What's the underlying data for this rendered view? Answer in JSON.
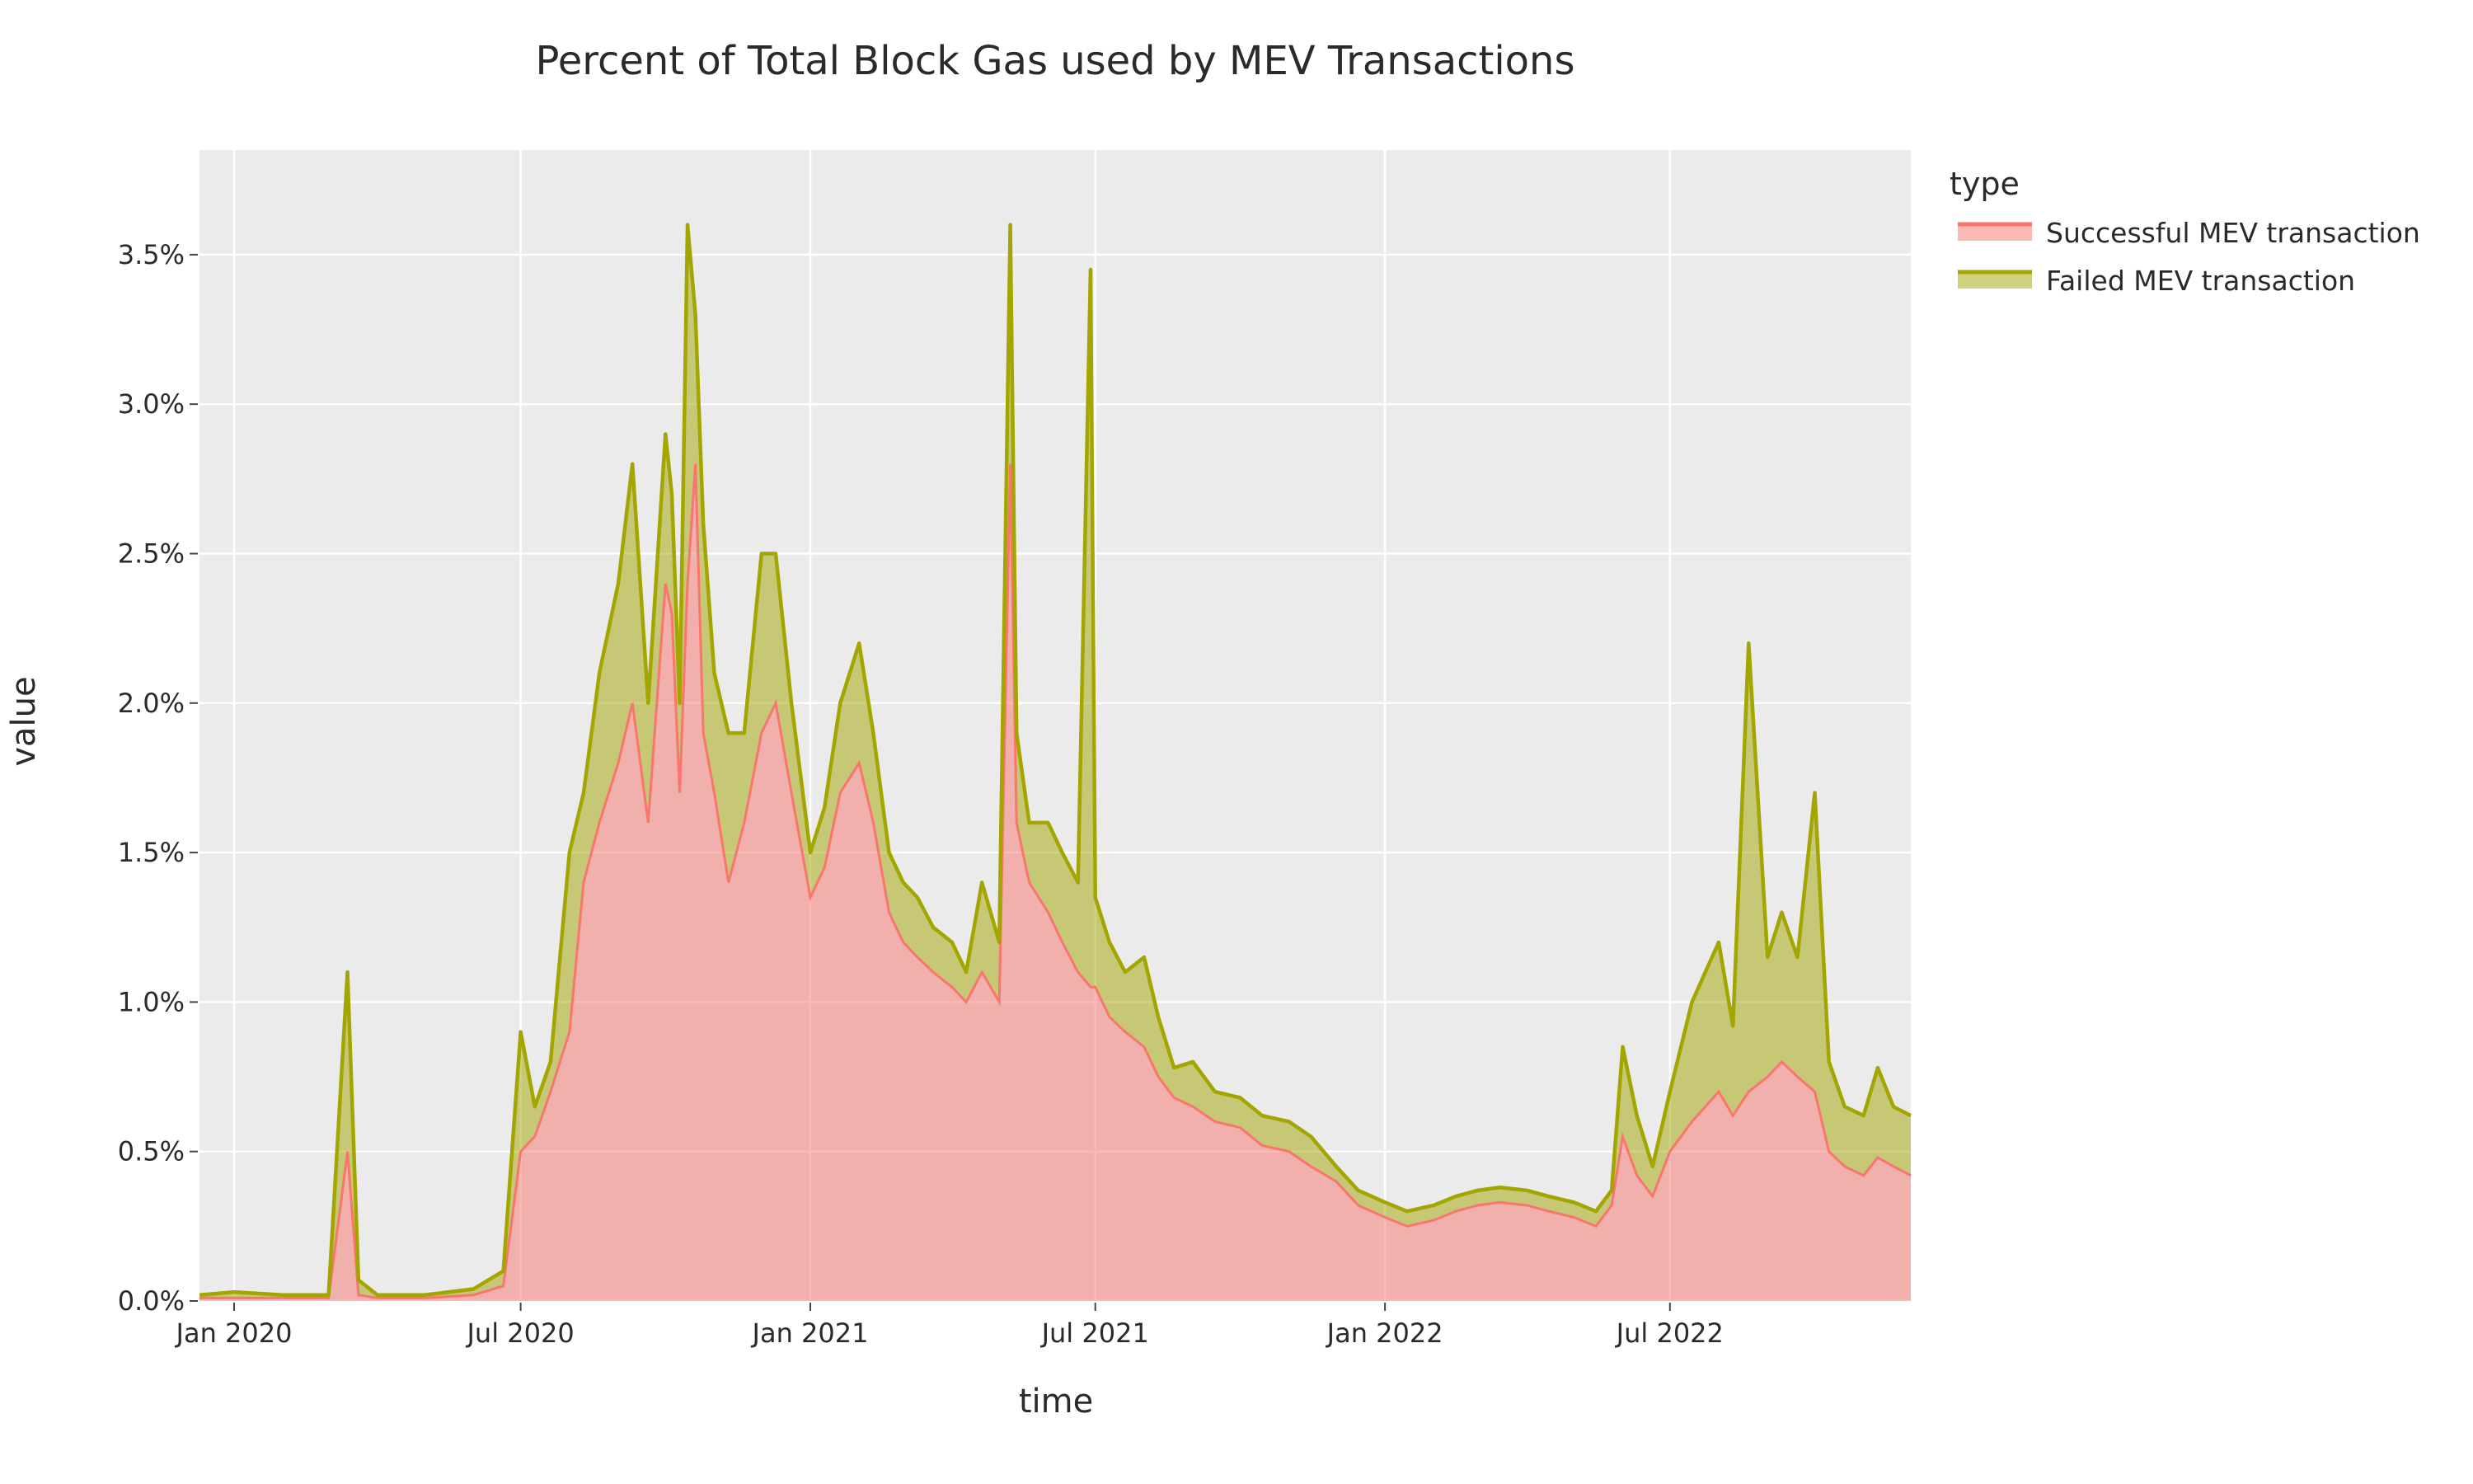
{
  "chart_data": {
    "type": "area",
    "title": "Percent of Total Block Gas used by MEV Transactions",
    "xlabel": "time",
    "ylabel": "value",
    "x_ticks": [
      "Jan 2020",
      "Jul 2020",
      "Jan 2021",
      "Jul 2021",
      "Jan 2022",
      "Jul 2022"
    ],
    "x_tick_dates": [
      "2020-01-01",
      "2020-07-01",
      "2021-01-01",
      "2021-07-01",
      "2022-01-01",
      "2022-07-01"
    ],
    "y_ticks": [
      "0.0%",
      "0.5%",
      "1.0%",
      "1.5%",
      "2.0%",
      "2.5%",
      "3.0%",
      "3.5%"
    ],
    "y_tick_values": [
      0,
      0.5,
      1.0,
      1.5,
      2.0,
      2.5,
      3.0,
      3.5
    ],
    "xlim": [
      "2019-12-10",
      "2022-12-01"
    ],
    "ylim": [
      0,
      3.85
    ],
    "y_unit": "%",
    "grid": true,
    "stacked": true,
    "legend": {
      "title": "type",
      "position": "right"
    },
    "background_color": "#ebebeb",
    "series": [
      {
        "name": "Successful MEV transaction",
        "color": "#f8766d",
        "x": [
          "2019-12-10",
          "2020-01-01",
          "2020-02-01",
          "2020-03-01",
          "2020-03-13",
          "2020-03-20",
          "2020-04-01",
          "2020-05-01",
          "2020-06-01",
          "2020-06-20",
          "2020-07-01",
          "2020-07-10",
          "2020-07-20",
          "2020-08-01",
          "2020-08-10",
          "2020-08-20",
          "2020-09-01",
          "2020-09-10",
          "2020-09-20",
          "2020-10-01",
          "2020-10-05",
          "2020-10-10",
          "2020-10-15",
          "2020-10-20",
          "2020-10-25",
          "2020-11-01",
          "2020-11-10",
          "2020-11-20",
          "2020-12-01",
          "2020-12-10",
          "2020-12-20",
          "2021-01-01",
          "2021-01-10",
          "2021-01-20",
          "2021-02-01",
          "2021-02-10",
          "2021-02-20",
          "2021-03-01",
          "2021-03-10",
          "2021-03-20",
          "2021-04-01",
          "2021-04-10",
          "2021-04-20",
          "2021-05-01",
          "2021-05-08",
          "2021-05-12",
          "2021-05-20",
          "2021-06-01",
          "2021-06-10",
          "2021-06-20",
          "2021-06-28",
          "2021-07-01",
          "2021-07-10",
          "2021-07-20",
          "2021-08-01",
          "2021-08-10",
          "2021-08-20",
          "2021-09-01",
          "2021-09-15",
          "2021-10-01",
          "2021-10-15",
          "2021-11-01",
          "2021-11-15",
          "2021-12-01",
          "2021-12-15",
          "2022-01-01",
          "2022-01-15",
          "2022-02-01",
          "2022-02-15",
          "2022-03-01",
          "2022-03-15",
          "2022-04-01",
          "2022-04-15",
          "2022-05-01",
          "2022-05-15",
          "2022-05-25",
          "2022-06-01",
          "2022-06-10",
          "2022-06-20",
          "2022-07-01",
          "2022-07-15",
          "2022-08-01",
          "2022-08-10",
          "2022-08-20",
          "2022-09-01",
          "2022-09-10",
          "2022-09-20",
          "2022-10-01",
          "2022-10-10",
          "2022-10-20",
          "2022-11-01",
          "2022-11-10",
          "2022-11-20",
          "2022-12-01"
        ],
        "values": [
          0.01,
          0.01,
          0.01,
          0.01,
          0.5,
          0.02,
          0.01,
          0.01,
          0.02,
          0.05,
          0.5,
          0.55,
          0.7,
          0.9,
          1.4,
          1.6,
          1.8,
          2.0,
          1.6,
          2.4,
          2.3,
          1.7,
          2.4,
          2.8,
          1.9,
          1.7,
          1.4,
          1.6,
          1.9,
          2.0,
          1.7,
          1.35,
          1.45,
          1.7,
          1.8,
          1.6,
          1.3,
          1.2,
          1.15,
          1.1,
          1.05,
          1.0,
          1.1,
          1.0,
          2.8,
          1.6,
          1.4,
          1.3,
          1.2,
          1.1,
          1.05,
          1.05,
          0.95,
          0.9,
          0.85,
          0.75,
          0.68,
          0.65,
          0.6,
          0.58,
          0.52,
          0.5,
          0.45,
          0.4,
          0.32,
          0.28,
          0.25,
          0.27,
          0.3,
          0.32,
          0.33,
          0.32,
          0.3,
          0.28,
          0.25,
          0.32,
          0.55,
          0.42,
          0.35,
          0.5,
          0.6,
          0.7,
          0.62,
          0.7,
          0.75,
          0.8,
          0.75,
          0.7,
          0.5,
          0.45,
          0.42,
          0.48,
          0.45,
          0.42
        ]
      },
      {
        "name": "Failed MEV transaction",
        "color": "#a3a500",
        "x": [
          "2019-12-10",
          "2020-01-01",
          "2020-02-01",
          "2020-03-01",
          "2020-03-13",
          "2020-03-20",
          "2020-04-01",
          "2020-05-01",
          "2020-06-01",
          "2020-06-20",
          "2020-07-01",
          "2020-07-10",
          "2020-07-20",
          "2020-08-01",
          "2020-08-10",
          "2020-08-20",
          "2020-09-01",
          "2020-09-10",
          "2020-09-20",
          "2020-10-01",
          "2020-10-05",
          "2020-10-10",
          "2020-10-15",
          "2020-10-20",
          "2020-10-25",
          "2020-11-01",
          "2020-11-10",
          "2020-11-20",
          "2020-12-01",
          "2020-12-10",
          "2020-12-20",
          "2021-01-01",
          "2021-01-10",
          "2021-01-20",
          "2021-02-01",
          "2021-02-10",
          "2021-02-20",
          "2021-03-01",
          "2021-03-10",
          "2021-03-20",
          "2021-04-01",
          "2021-04-10",
          "2021-04-20",
          "2021-05-01",
          "2021-05-08",
          "2021-05-12",
          "2021-05-20",
          "2021-06-01",
          "2021-06-10",
          "2021-06-20",
          "2021-06-28",
          "2021-07-01",
          "2021-07-10",
          "2021-07-20",
          "2021-08-01",
          "2021-08-10",
          "2021-08-20",
          "2021-09-01",
          "2021-09-15",
          "2021-10-01",
          "2021-10-15",
          "2021-11-01",
          "2021-11-15",
          "2021-12-01",
          "2021-12-15",
          "2022-01-01",
          "2022-01-15",
          "2022-02-01",
          "2022-02-15",
          "2022-03-01",
          "2022-03-15",
          "2022-04-01",
          "2022-04-15",
          "2022-05-01",
          "2022-05-15",
          "2022-05-25",
          "2022-06-01",
          "2022-06-10",
          "2022-06-20",
          "2022-07-01",
          "2022-07-15",
          "2022-08-01",
          "2022-08-10",
          "2022-08-20",
          "2022-09-01",
          "2022-09-10",
          "2022-09-20",
          "2022-10-01",
          "2022-10-10",
          "2022-10-20",
          "2022-11-01",
          "2022-11-10",
          "2022-11-20",
          "2022-12-01"
        ],
        "values": [
          0.01,
          0.02,
          0.01,
          0.01,
          0.6,
          0.05,
          0.01,
          0.01,
          0.02,
          0.05,
          0.4,
          0.1,
          0.1,
          0.6,
          0.3,
          0.5,
          0.6,
          0.8,
          0.4,
          0.5,
          0.4,
          0.3,
          1.2,
          0.5,
          0.7,
          0.4,
          0.5,
          0.3,
          0.6,
          0.5,
          0.3,
          0.15,
          0.2,
          0.3,
          0.4,
          0.3,
          0.2,
          0.2,
          0.2,
          0.15,
          0.15,
          0.1,
          0.3,
          0.2,
          0.8,
          0.3,
          0.2,
          0.3,
          0.3,
          0.3,
          2.4,
          0.3,
          0.25,
          0.2,
          0.3,
          0.2,
          0.1,
          0.15,
          0.1,
          0.1,
          0.1,
          0.1,
          0.1,
          0.05,
          0.05,
          0.05,
          0.05,
          0.05,
          0.05,
          0.05,
          0.05,
          0.05,
          0.05,
          0.05,
          0.05,
          0.05,
          0.3,
          0.2,
          0.1,
          0.2,
          0.4,
          0.5,
          0.3,
          1.5,
          0.4,
          0.5,
          0.4,
          1.0,
          0.3,
          0.2,
          0.2,
          0.3,
          0.2,
          0.2
        ]
      }
    ]
  }
}
